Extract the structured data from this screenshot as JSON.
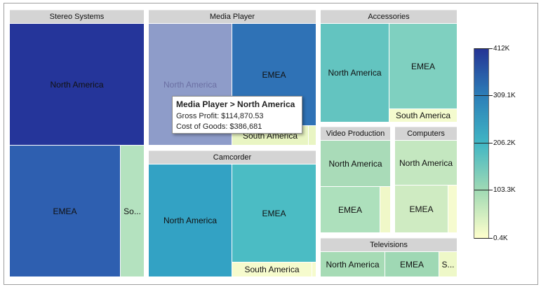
{
  "chart_data": {
    "type": "treemap",
    "measure": "Cost of Goods",
    "color_scale": {
      "min": "0.4K",
      "max": "412K",
      "ticks": [
        "412K",
        "309.1K",
        "206.2K",
        "103.3K",
        "0.4K"
      ],
      "colors": [
        "#ffffcc",
        "#a1dab4",
        "#41b6c4",
        "#2c7fb8",
        "#253494"
      ]
    },
    "groups": [
      {
        "name": "Stereo Systems",
        "tiles": [
          {
            "label": "North America",
            "color": "#25359a"
          },
          {
            "label": "EMEA",
            "color": "#2e5fb0"
          },
          {
            "label": "So...",
            "color": "#b4e2bf"
          }
        ]
      },
      {
        "name": "Media Player",
        "tiles": [
          {
            "label": "North America",
            "color": "#8e9cc9"
          },
          {
            "label": "EMEA",
            "color": "#2f72b6"
          },
          {
            "label": "South America",
            "color": "#e9f5c3"
          }
        ]
      },
      {
        "name": "Camcorder",
        "tiles": [
          {
            "label": "North America",
            "color": "#33a2c4"
          },
          {
            "label": "EMEA",
            "color": "#4bbcc4"
          },
          {
            "label": "South America",
            "color": "#f6fbcd"
          }
        ]
      },
      {
        "name": "Accessories",
        "tiles": [
          {
            "label": "North America",
            "color": "#63c4c0"
          },
          {
            "label": "EMEA",
            "color": "#7fd0c0"
          },
          {
            "label": "South America",
            "color": "#f4fbce"
          }
        ]
      },
      {
        "name": "Video Production",
        "tiles": [
          {
            "label": "North America",
            "color": "#a9dbb8"
          },
          {
            "label": "EMEA",
            "color": "#ade0bc"
          },
          {
            "label": "",
            "color": "#f0f8c8"
          }
        ]
      },
      {
        "name": "Computers",
        "tiles": [
          {
            "label": "North America",
            "color": "#c4e7c0"
          },
          {
            "label": "EMEA",
            "color": "#cfebc2"
          },
          {
            "label": "",
            "color": "#f6fbcf"
          }
        ]
      },
      {
        "name": "Televisions",
        "tiles": [
          {
            "label": "North America",
            "color": "#a6dbb5"
          },
          {
            "label": "EMEA",
            "color": "#9fd8b4"
          },
          {
            "label": "S...",
            "color": "#eef8c8"
          }
        ]
      }
    ],
    "tooltip": {
      "title": "Media Player > North America",
      "lines": [
        "Gross Profit: $114,870.53",
        "Cost of Goods: $386,681"
      ]
    }
  }
}
